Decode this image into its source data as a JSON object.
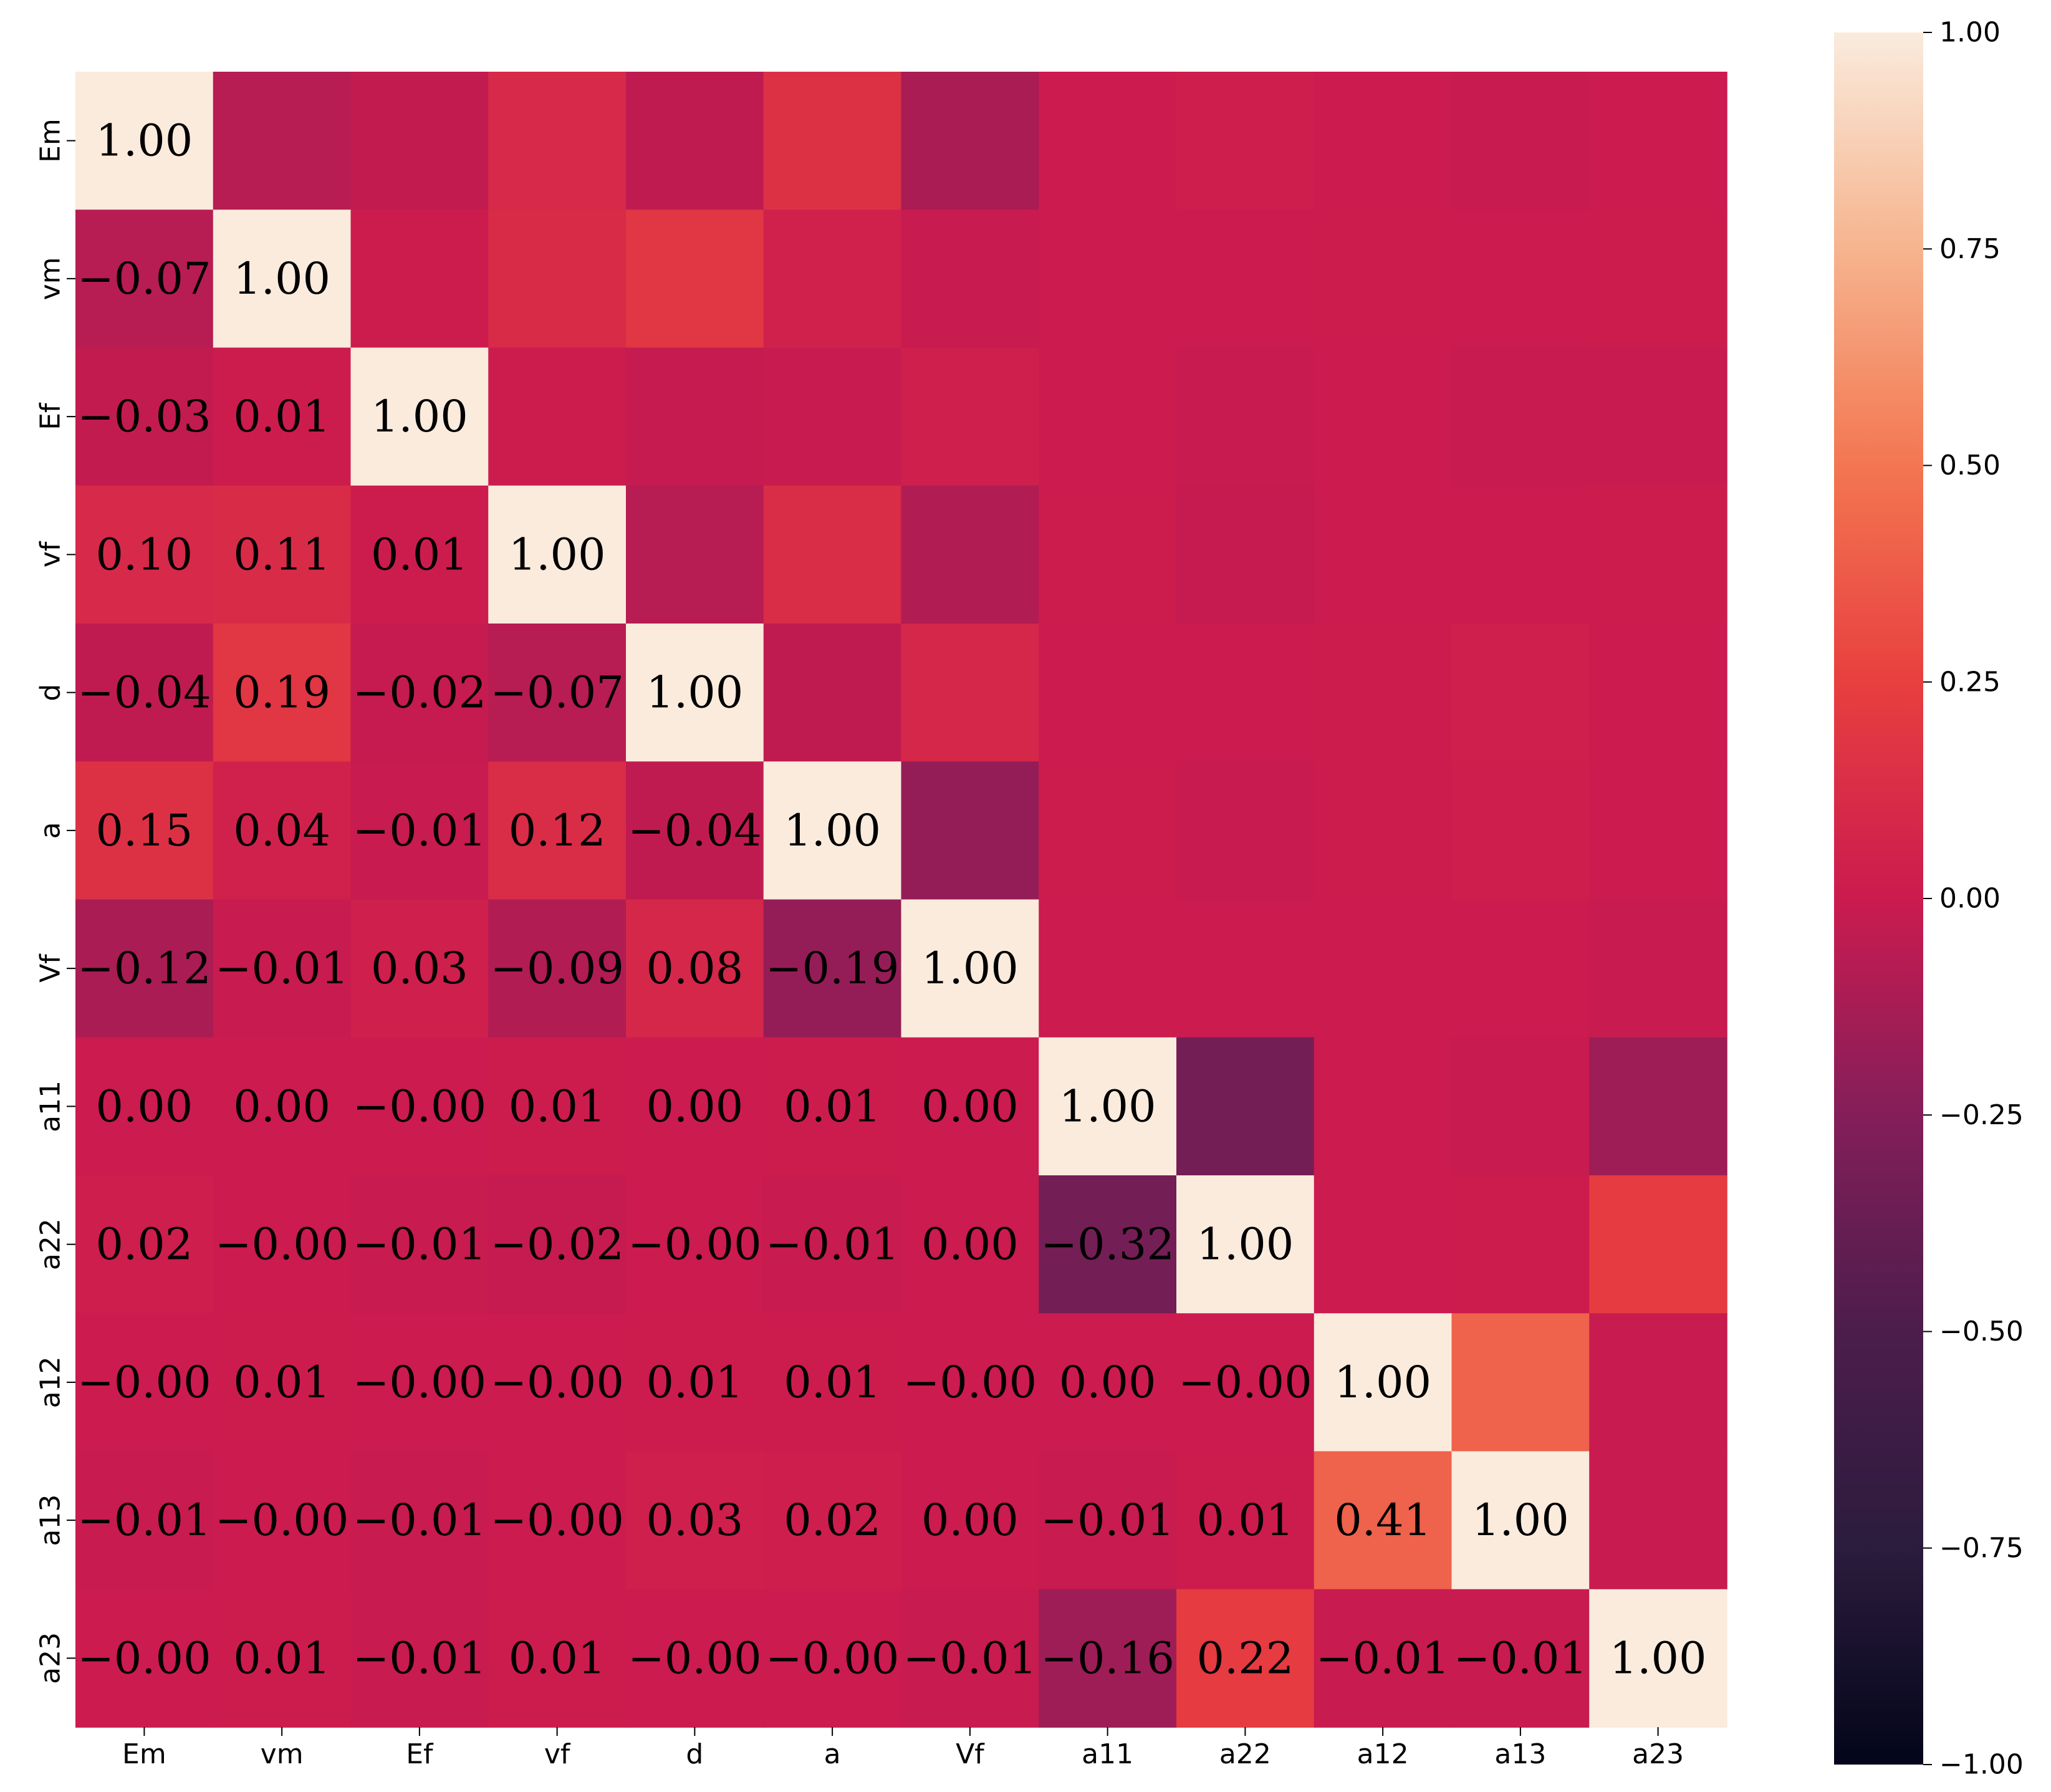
{
  "chart_data": {
    "type": "heatmap",
    "title": "",
    "xlabel": "",
    "ylabel": "",
    "variables": [
      "Em",
      "vm",
      "Ef",
      "vf",
      "d",
      "a",
      "Vf",
      "a11",
      "a22",
      "a12",
      "a13",
      "a23"
    ],
    "values": [
      [
        1.0,
        -0.07,
        -0.03,
        0.1,
        -0.04,
        0.15,
        -0.12,
        0.0,
        0.02,
        -0.0,
        -0.01,
        -0.0
      ],
      [
        -0.07,
        1.0,
        0.01,
        0.11,
        0.19,
        0.04,
        -0.01,
        0.0,
        -0.0,
        0.01,
        -0.0,
        0.01
      ],
      [
        -0.03,
        0.01,
        1.0,
        0.01,
        -0.02,
        -0.01,
        0.03,
        -0.0,
        -0.01,
        -0.0,
        -0.01,
        -0.01
      ],
      [
        0.1,
        0.11,
        0.01,
        1.0,
        -0.07,
        0.12,
        -0.09,
        0.01,
        -0.02,
        -0.0,
        -0.0,
        0.01
      ],
      [
        -0.04,
        0.19,
        -0.02,
        -0.07,
        1.0,
        -0.04,
        0.08,
        0.0,
        -0.0,
        0.01,
        0.03,
        -0.0
      ],
      [
        0.15,
        0.04,
        -0.01,
        0.12,
        -0.04,
        1.0,
        -0.19,
        0.01,
        -0.01,
        0.01,
        0.02,
        -0.0
      ],
      [
        -0.12,
        -0.01,
        0.03,
        -0.09,
        0.08,
        -0.19,
        1.0,
        0.0,
        0.0,
        -0.0,
        0.0,
        -0.01
      ],
      [
        0.0,
        0.0,
        -0.0,
        0.01,
        0.0,
        0.01,
        0.0,
        1.0,
        -0.32,
        0.0,
        -0.01,
        -0.16
      ],
      [
        0.02,
        -0.0,
        -0.01,
        -0.02,
        -0.0,
        -0.01,
        0.0,
        -0.32,
        1.0,
        -0.0,
        0.01,
        0.22
      ],
      [
        -0.0,
        0.01,
        -0.0,
        -0.0,
        0.01,
        0.01,
        -0.0,
        0.0,
        -0.0,
        1.0,
        0.41,
        -0.01
      ],
      [
        -0.01,
        -0.0,
        -0.01,
        -0.0,
        0.03,
        0.02,
        0.0,
        -0.01,
        0.01,
        0.41,
        1.0,
        -0.01
      ],
      [
        -0.0,
        0.01,
        -0.01,
        0.01,
        -0.0,
        -0.0,
        -0.01,
        -0.16,
        0.22,
        -0.01,
        -0.01,
        1.0
      ]
    ],
    "annotations": [
      [
        "1.00",
        "",
        "",
        "",
        "",
        "",
        "",
        "",
        "",
        "",
        "",
        ""
      ],
      [
        "−0.07",
        "1.00",
        "",
        "",
        "",
        "",
        "",
        "",
        "",
        "",
        "",
        ""
      ],
      [
        "−0.03",
        "0.01",
        "1.00",
        "",
        "",
        "",
        "",
        "",
        "",
        "",
        "",
        ""
      ],
      [
        "0.10",
        "0.11",
        "0.01",
        "1.00",
        "",
        "",
        "",
        "",
        "",
        "",
        "",
        ""
      ],
      [
        "−0.04",
        "0.19",
        "−0.02",
        "−0.07",
        "1.00",
        "",
        "",
        "",
        "",
        "",
        "",
        ""
      ],
      [
        "0.15",
        "0.04",
        "−0.01",
        "0.12",
        "−0.04",
        "1.00",
        "",
        "",
        "",
        "",
        "",
        ""
      ],
      [
        "−0.12",
        "−0.01",
        "0.03",
        "−0.09",
        "0.08",
        "−0.19",
        "1.00",
        "",
        "",
        "",
        "",
        ""
      ],
      [
        "0.00",
        "0.00",
        "−0.00",
        "0.01",
        "0.00",
        "0.01",
        "0.00",
        "1.00",
        "",
        "",
        "",
        ""
      ],
      [
        "0.02",
        "−0.00",
        "−0.01",
        "−0.02",
        "−0.00",
        "−0.01",
        "0.00",
        "−0.32",
        "1.00",
        "",
        "",
        ""
      ],
      [
        "−0.00",
        "0.01",
        "−0.00",
        "−0.00",
        "0.01",
        "0.01",
        "−0.00",
        "0.00",
        "−0.00",
        "1.00",
        "",
        ""
      ],
      [
        "−0.01",
        "−0.00",
        "−0.01",
        "−0.00",
        "0.03",
        "0.02",
        "0.00",
        "−0.01",
        "0.01",
        "0.41",
        "1.00",
        ""
      ],
      [
        "−0.00",
        "0.01",
        "−0.01",
        "0.01",
        "−0.00",
        "−0.00",
        "−0.01",
        "−0.16",
        "0.22",
        "−0.01",
        "−0.01",
        "1.00"
      ]
    ],
    "colorscale": {
      "name": "rocket",
      "vmin": -1.0,
      "vmax": 1.0,
      "stops": [
        [
          -1.0,
          "#03051a"
        ],
        [
          -0.75,
          "#2b1c3d"
        ],
        [
          -0.5,
          "#4c1d4b"
        ],
        [
          -0.25,
          "#841e5a"
        ],
        [
          0.0,
          "#cb1b4f"
        ],
        [
          0.25,
          "#e83f3f"
        ],
        [
          0.5,
          "#f37651"
        ],
        [
          0.75,
          "#f6b48e"
        ],
        [
          1.0,
          "#faebdd"
        ]
      ]
    },
    "colorbar": {
      "ticks": [
        1.0,
        0.75,
        0.5,
        0.25,
        0.0,
        -0.25,
        -0.5,
        -0.75,
        -1.0
      ],
      "tick_labels": [
        "1.00",
        "0.75",
        "0.50",
        "0.25",
        "0.00",
        "−0.25",
        "−0.50",
        "−0.75",
        "−1.00"
      ]
    },
    "grid": false,
    "legend": "colorbar-right"
  }
}
